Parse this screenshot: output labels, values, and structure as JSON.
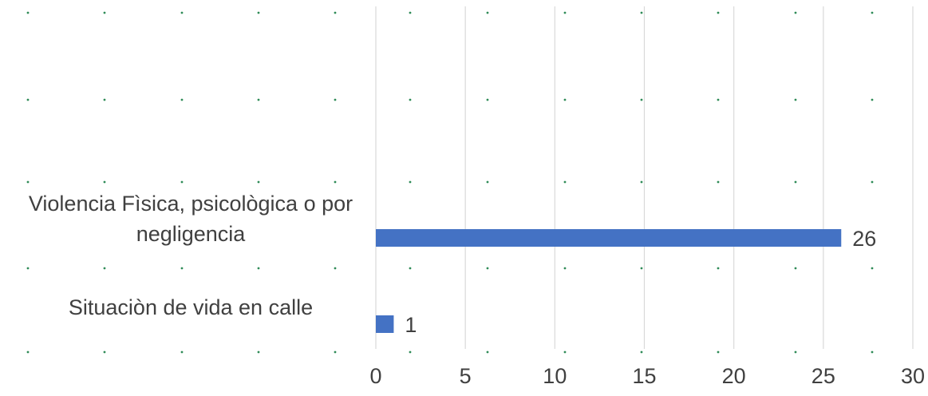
{
  "chart_data": {
    "type": "bar",
    "orientation": "horizontal",
    "categories": [
      "Violencia Fìsica, psicològica o por negligencia",
      "Situaciòn de vida en calle"
    ],
    "category_lines": [
      [
        "Violencia Fìsica, psicològica o por",
        "negligencia"
      ],
      [
        "Situaciòn de vida en calle"
      ]
    ],
    "values": [
      26,
      1
    ],
    "data_labels": [
      "26",
      "1"
    ],
    "xlim": [
      0,
      30
    ],
    "x_ticks": [
      0,
      5,
      10,
      15,
      20,
      25,
      30
    ],
    "x_tick_labels": [
      "0",
      "5",
      "10",
      "15",
      "20",
      "25",
      "30"
    ],
    "grid": true,
    "title": "",
    "xlabel": "",
    "ylabel": "",
    "colors": {
      "bar": "#4472C4",
      "gridline": "#D9D9D9",
      "dots": "#2E8B57",
      "text": "#404040"
    }
  }
}
